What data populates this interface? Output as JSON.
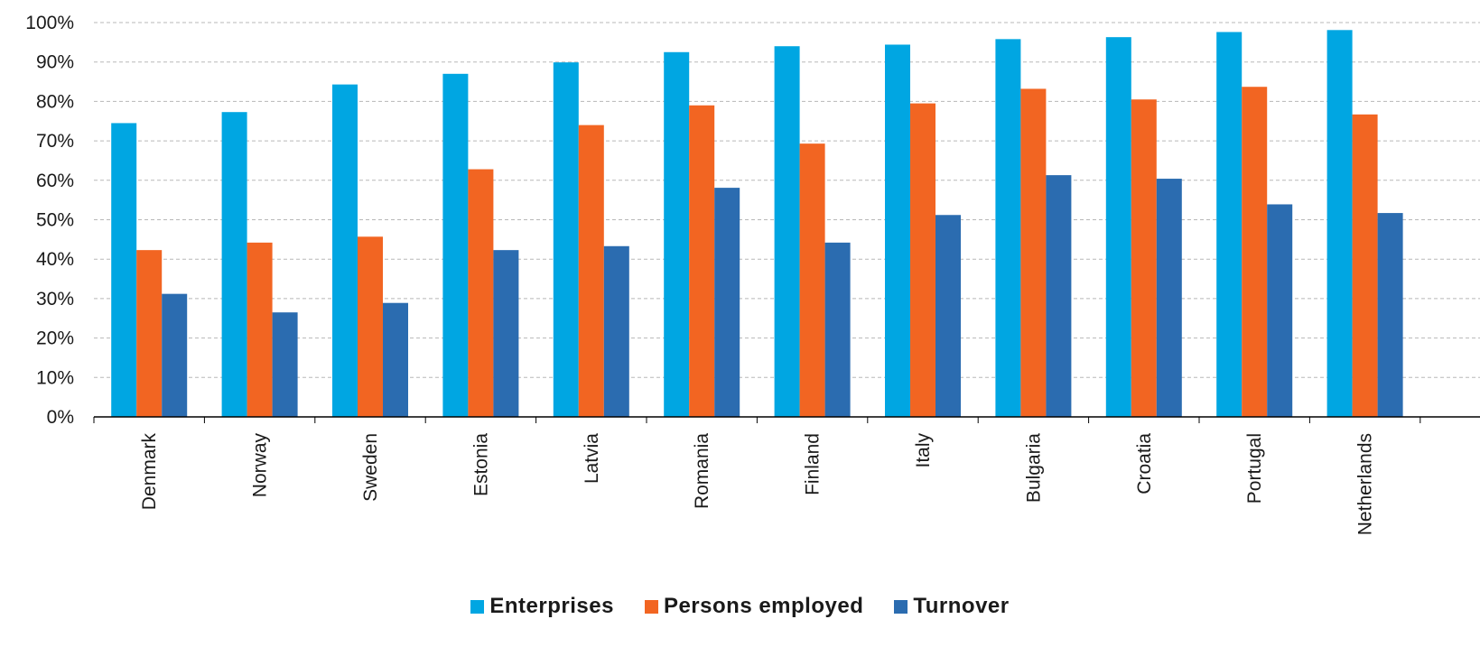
{
  "chart_data": {
    "type": "bar",
    "categories": [
      "Denmark",
      "Norway",
      "Sweden",
      "Estonia",
      "Latvia",
      "Romania",
      "Finland",
      "Italy",
      "Bulgaria",
      "Croatia",
      "Portugal",
      "Netherlands"
    ],
    "series": [
      {
        "name": "Enterprises",
        "color": "#00A6E2",
        "values": [
          74.5,
          77.3,
          84.3,
          87.0,
          89.9,
          92.5,
          94.0,
          94.4,
          95.8,
          96.3,
          97.6,
          98.1
        ]
      },
      {
        "name": "Persons employed",
        "color": "#F26522",
        "values": [
          42.3,
          44.2,
          45.7,
          62.8,
          74.0,
          79.0,
          69.3,
          79.5,
          83.2,
          80.5,
          83.7,
          76.7
        ]
      },
      {
        "name": "Turnover",
        "color": "#2B6CB0",
        "values": [
          31.2,
          26.5,
          28.9,
          42.3,
          43.3,
          58.1,
          44.2,
          51.2,
          61.3,
          60.4,
          53.9,
          51.7
        ]
      }
    ],
    "ylim": [
      0,
      100
    ],
    "yticks": [
      "0%",
      "10%",
      "20%",
      "30%",
      "40%",
      "50%",
      "60%",
      "70%",
      "80%",
      "90%",
      "100%"
    ],
    "grid": "horizontal dashed",
    "legend_position": "bottom"
  }
}
